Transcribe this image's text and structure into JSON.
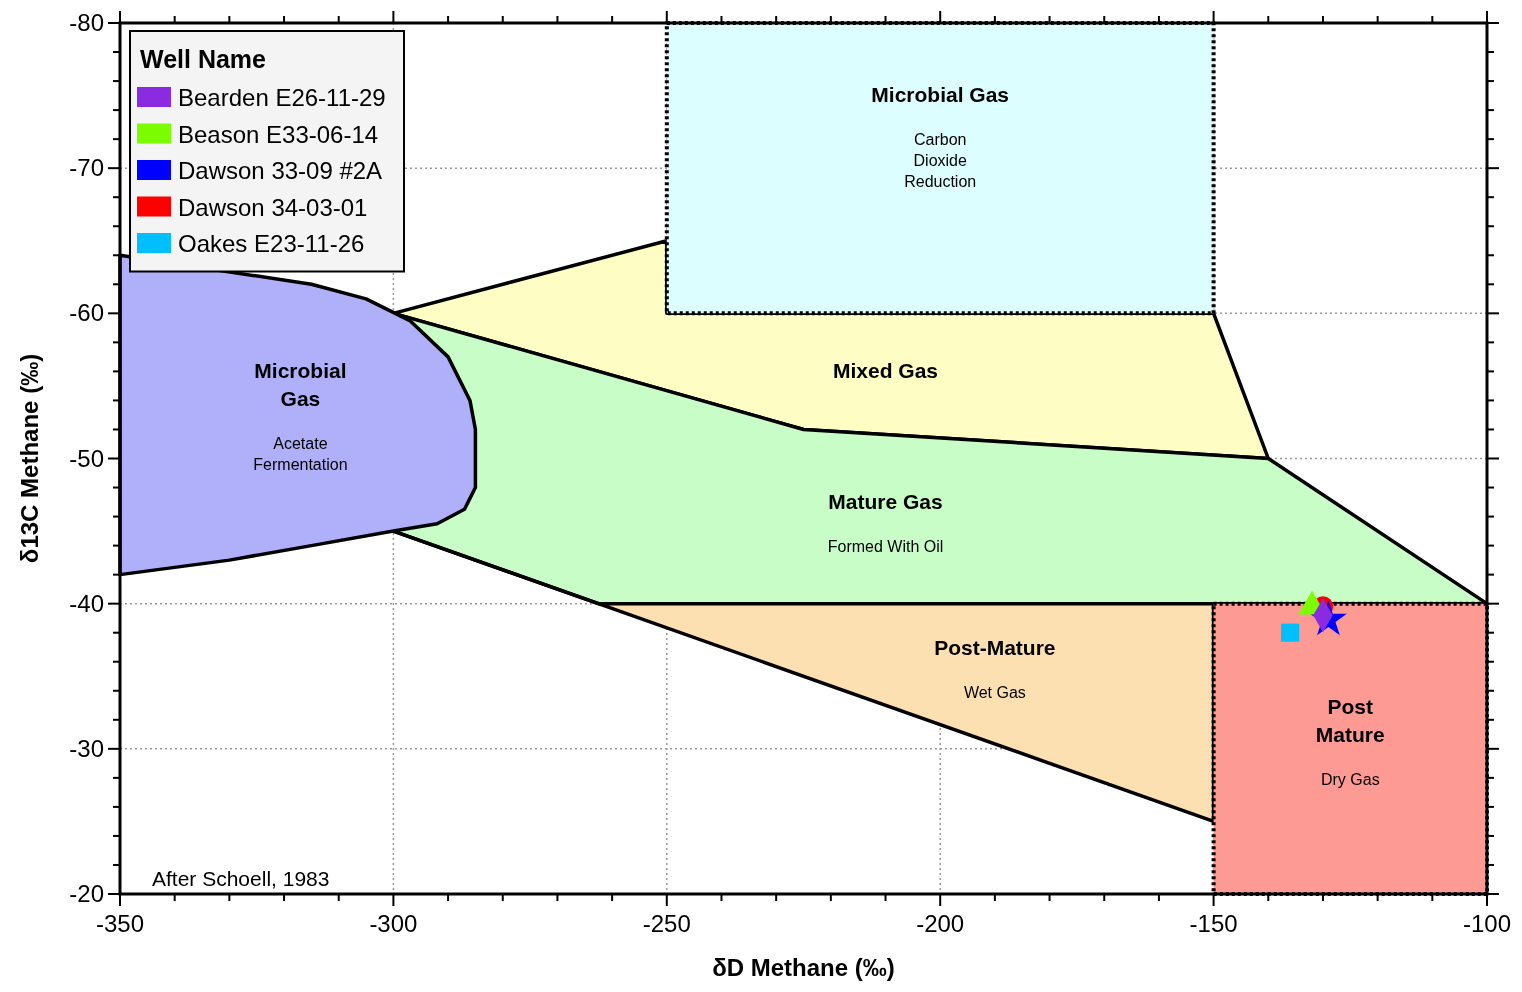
{
  "chart_data": {
    "type": "scatter",
    "xlabel": "δD Methane (‰)",
    "ylabel": "δ13C Methane (‰)",
    "legend_title": "Well Name",
    "legend": "top left",
    "grid": true,
    "xlim": [
      -350,
      -100
    ],
    "ylim": [
      -20,
      -80
    ],
    "xticks": [
      -350,
      {
        "value": -340,
        "label": null
      },
      {
        "value": -330,
        "label": null
      },
      {
        "value": -320,
        "label": null
      },
      {
        "value": -310,
        "label": null
      },
      -300,
      {
        "value": -290,
        "label": null
      },
      {
        "value": -280,
        "label": null
      },
      {
        "value": -270,
        "label": null
      },
      {
        "value": -260,
        "label": null
      },
      -250,
      {
        "value": -240,
        "label": null
      },
      {
        "value": -230,
        "label": null
      },
      {
        "value": -220,
        "label": null
      },
      {
        "value": -210,
        "label": null
      },
      -200,
      {
        "value": -190,
        "label": null
      },
      {
        "value": -180,
        "label": null
      },
      {
        "value": -170,
        "label": null
      },
      {
        "value": -160,
        "label": null
      },
      -150,
      {
        "value": -140,
        "label": null
      },
      {
        "value": -130,
        "label": null
      },
      {
        "value": -120,
        "label": null
      },
      {
        "value": -110,
        "label": null
      },
      -100
    ],
    "yticks": [
      -20,
      {
        "value": -22,
        "label": null
      },
      {
        "value": -24,
        "label": null
      },
      {
        "value": -26,
        "label": null
      },
      {
        "value": -28,
        "label": null
      },
      -30,
      {
        "value": -32,
        "label": null
      },
      {
        "value": -34,
        "label": null
      },
      {
        "value": -36,
        "label": null
      },
      {
        "value": -38,
        "label": null
      },
      -40,
      {
        "value": -42,
        "label": null
      },
      {
        "value": -44,
        "label": null
      },
      {
        "value": -46,
        "label": null
      },
      {
        "value": -48,
        "label": null
      },
      -50,
      {
        "value": -52,
        "label": null
      },
      {
        "value": -54,
        "label": null
      },
      {
        "value": -56,
        "label": null
      },
      {
        "value": -58,
        "label": null
      },
      -60,
      {
        "value": -62,
        "label": null
      },
      {
        "value": -64,
        "label": null
      },
      {
        "value": -66,
        "label": null
      },
      {
        "value": -68,
        "label": null
      },
      -70,
      {
        "value": -72,
        "label": null
      },
      {
        "value": -74,
        "label": null
      },
      {
        "value": -76,
        "label": null
      },
      {
        "value": -78,
        "label": null
      },
      -80
    ],
    "series": [
      {
        "type": "area",
        "color": "#fdfdc4",
        "x": [
          -300,
          -250,
          -250,
          -150,
          -140,
          -225,
          -300
        ],
        "values": [
          -60,
          -65,
          -60,
          -60,
          -50,
          -52,
          -60
        ]
      },
      {
        "type": "area",
        "color": "#c8fdc8",
        "x": [
          -300,
          -225,
          -140,
          -100,
          -262.5,
          -300
        ],
        "values": [
          -60,
          -52,
          -50,
          -40,
          -40,
          -45
        ]
      },
      {
        "type": "area",
        "color": "#fde0b2",
        "x": [
          -262.5,
          -150,
          -150,
          -300
        ],
        "values": [
          -40,
          -40,
          -25,
          -45
        ]
      },
      {
        "type": "area",
        "color": "#b0b0fa",
        "x": [
          -350,
          -315,
          -305,
          -297,
          -290,
          -286,
          -285,
          -285,
          -287,
          -292,
          -300,
          -315,
          -330,
          -350
        ],
        "values": [
          -64,
          -62,
          -61,
          -59.5,
          -57,
          -54,
          -52,
          -48,
          -46.5,
          -45.5,
          -45,
          -44,
          -43,
          -42
        ]
      },
      {
        "type": "area",
        "color": "#dcfefe",
        "line_style": "dotted",
        "x": [
          -250,
          -150,
          -150,
          -250
        ],
        "values": [
          -80,
          -80,
          -60,
          -60
        ]
      },
      {
        "type": "area",
        "color": "#fd9a93",
        "line_style": "dotted",
        "x": [
          -150,
          -100,
          -100,
          -150
        ],
        "values": [
          -40,
          -40,
          -20,
          -20
        ]
      },
      {
        "name": "Bearden E26-11-29",
        "color": "#8a2be2",
        "marker": "diamond",
        "x": [
          -130
        ],
        "values": [
          -39.2
        ]
      },
      {
        "name": "Beason E33-06-14",
        "color": "#7cfc00",
        "marker": "triangle",
        "x": [
          -132
        ],
        "values": [
          -39.8
        ]
      },
      {
        "name": "Dawson 33-09 #2A",
        "color": "#0000ff",
        "marker": "star",
        "x": [
          -129
        ],
        "values": [
          -38.9
        ]
      },
      {
        "name": "Dawson 34-03-01",
        "color": "#ff0000",
        "marker": "circle",
        "x": [
          -130
        ],
        "values": [
          -39.8
        ]
      },
      {
        "name": "Oakes E23-11-26",
        "color": "#00bfff",
        "marker": "square",
        "x": [
          -136
        ],
        "values": [
          -38
        ]
      }
    ],
    "annotations": [
      "Microbial\nGas\n\nAcetate\nFermentation",
      "Microbial Gas\n\nCarbon\nDioxide\nReduction",
      "Mixed Gas",
      "Mature Gas\n\nFormed With Oil",
      "Post-Mature\n\nWet Gas",
      "Post\nMature\n\nDry Gas",
      "After Schoell, 1983"
    ]
  }
}
